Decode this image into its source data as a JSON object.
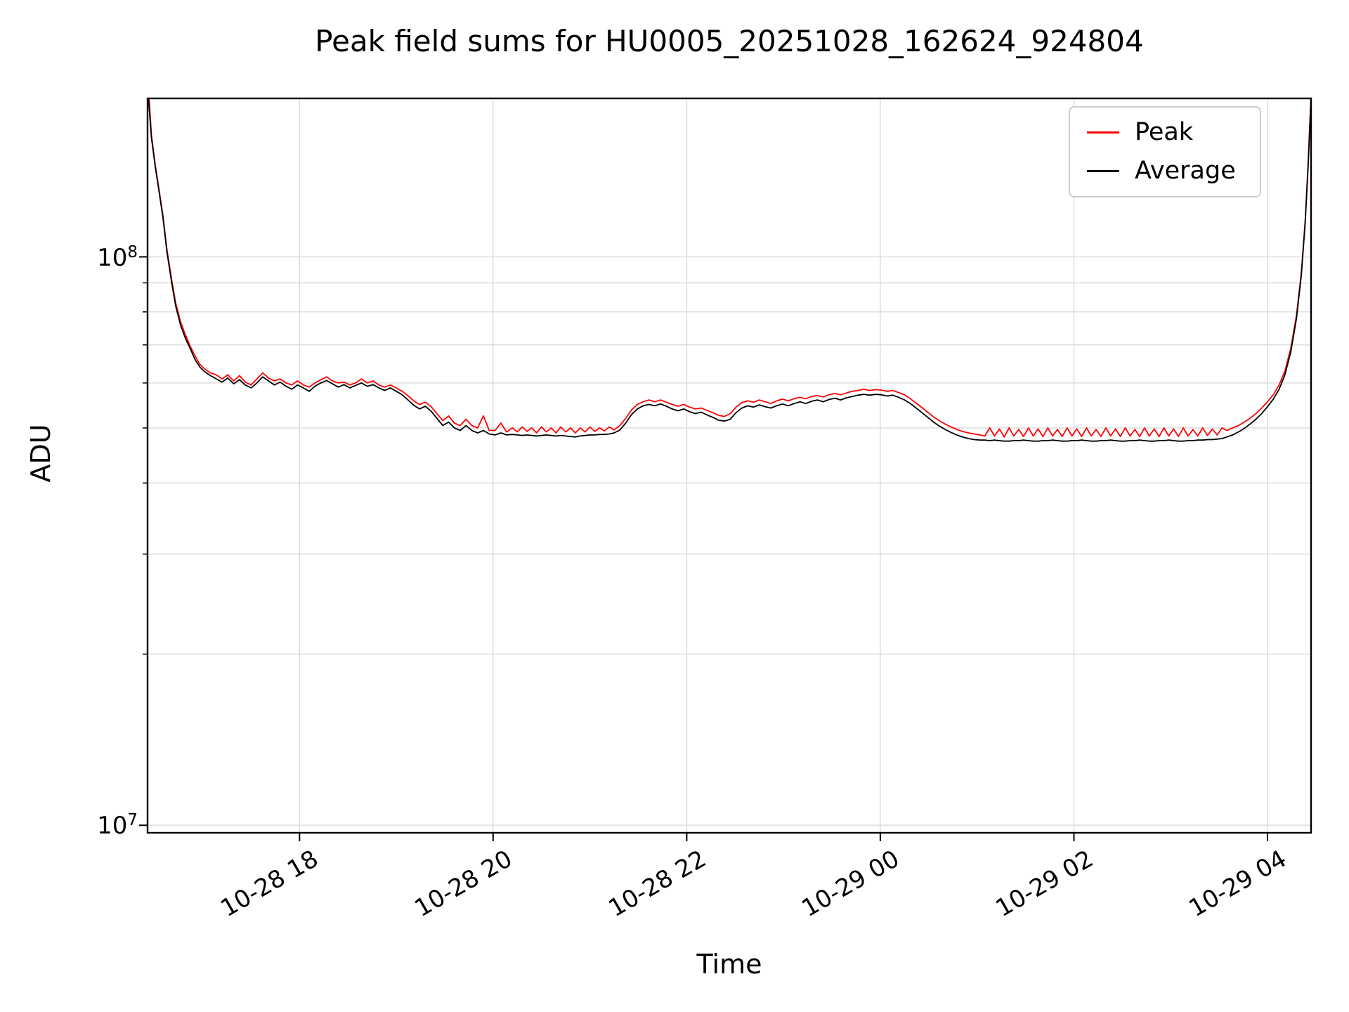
{
  "chart": {
    "title": "Peak field sums for HU0005_20251028_162624_924804",
    "xlabel": "Time",
    "ylabel": "ADU",
    "xlim": [
      16.43,
      28.45
    ],
    "ylim": [
      9700000.0,
      190000000.0
    ],
    "yscale": "log",
    "grid_color": "#dedede",
    "spine_color": "#000000",
    "background": "#ffffff",
    "x_ticks": [
      {
        "t": 18,
        "label": "10-28 18"
      },
      {
        "t": 20,
        "label": "10-28 20"
      },
      {
        "t": 22,
        "label": "10-28 22"
      },
      {
        "t": 24,
        "label": "10-29 00"
      },
      {
        "t": 26,
        "label": "10-29 02"
      },
      {
        "t": 28,
        "label": "10-29 04"
      }
    ],
    "y_ticks": [
      {
        "value": 10000000.0,
        "base": "10",
        "exp": "7"
      },
      {
        "value": 100000000.0,
        "base": "10",
        "exp": "8"
      }
    ],
    "y_minor_ticks": [
      20000000.0,
      30000000.0,
      40000000.0,
      50000000.0,
      60000000.0,
      70000000.0,
      80000000.0,
      90000000.0
    ],
    "legend": [
      {
        "label": "Peak",
        "color": "#ff0000"
      },
      {
        "label": "Average",
        "color": "#000000"
      }
    ]
  },
  "chart_data": {
    "type": "line",
    "title": "Peak field sums for HU0005_20251028_162624_924804",
    "xlabel": "Time",
    "ylabel": "ADU",
    "yscale": "log",
    "ylim": [
      9700000.0,
      190000000.0
    ],
    "x_unit": "hours since 2025-10-28 00:00 (18 = 10-28 18:00, 28 = 10-29 04:00)",
    "y_unit": "ADU",
    "legend_position": "upper right",
    "grid": true,
    "series": [
      {
        "name": "Peak",
        "color": "#ff0000"
      },
      {
        "name": "Average",
        "color": "#000000"
      }
    ],
    "columns": [
      "time_hours",
      "average",
      "peak"
    ],
    "points": [
      [
        16.43,
        200000000.0,
        210000000.0
      ],
      [
        16.47,
        162000000.0,
        164000000.0
      ],
      [
        16.51,
        144000000.0,
        145000000.0
      ],
      [
        16.55,
        130000000.0,
        131000000.0
      ],
      [
        16.59,
        117000000.0,
        118000000.0
      ],
      [
        16.63,
        102000000.0,
        103000000.0
      ],
      [
        16.68,
        90000000.0,
        91000000.0
      ],
      [
        16.72,
        82000000.0,
        83000000.0
      ],
      [
        16.77,
        76000000.0,
        77000000.0
      ],
      [
        16.82,
        72000000.0,
        73000000.0
      ],
      [
        16.87,
        69000000.0,
        69700000.0
      ],
      [
        16.92,
        66000000.0,
        67000000.0
      ],
      [
        16.97,
        64000000.0,
        64700000.0
      ],
      [
        17.02,
        62800000.0,
        63500000.0
      ],
      [
        17.08,
        61800000.0,
        62500000.0
      ],
      [
        17.14,
        61000000.0,
        62000000.0
      ],
      [
        17.2,
        60200000.0,
        61000000.0
      ],
      [
        17.26,
        61200000.0,
        62000000.0
      ],
      [
        17.32,
        59800000.0,
        60500000.0
      ],
      [
        17.38,
        60800000.0,
        61800000.0
      ],
      [
        17.44,
        59500000.0,
        60200000.0
      ],
      [
        17.5,
        58800000.0,
        59500000.0
      ],
      [
        17.56,
        60000000.0,
        61000000.0
      ],
      [
        17.62,
        61500000.0,
        62500000.0
      ],
      [
        17.68,
        60500000.0,
        61200000.0
      ],
      [
        17.74,
        59500000.0,
        60500000.0
      ],
      [
        17.8,
        60200000.0,
        61000000.0
      ],
      [
        17.86,
        59200000.0,
        60000000.0
      ],
      [
        17.92,
        58500000.0,
        59500000.0
      ],
      [
        17.98,
        59500000.0,
        60500000.0
      ],
      [
        18.04,
        58800000.0,
        59500000.0
      ],
      [
        18.1,
        58000000.0,
        59000000.0
      ],
      [
        18.16,
        59200000.0,
        60000000.0
      ],
      [
        18.22,
        60000000.0,
        60800000.0
      ],
      [
        18.28,
        60600000.0,
        61500000.0
      ],
      [
        18.34,
        59800000.0,
        60500000.0
      ],
      [
        18.4,
        59000000.0,
        60000000.0
      ],
      [
        18.46,
        59600000.0,
        60200000.0
      ],
      [
        18.52,
        58800000.0,
        59500000.0
      ],
      [
        18.58,
        59400000.0,
        60000000.0
      ],
      [
        18.64,
        60000000.0,
        61000000.0
      ],
      [
        18.7,
        59200000.0,
        60000000.0
      ],
      [
        18.76,
        59600000.0,
        60500000.0
      ],
      [
        18.82,
        58800000.0,
        59500000.0
      ],
      [
        18.88,
        58200000.0,
        59000000.0
      ],
      [
        18.94,
        58800000.0,
        59500000.0
      ],
      [
        19.0,
        58000000.0,
        58800000.0
      ],
      [
        19.06,
        57200000.0,
        58000000.0
      ],
      [
        19.12,
        56000000.0,
        57000000.0
      ],
      [
        19.18,
        54800000.0,
        55800000.0
      ],
      [
        19.24,
        54000000.0,
        55000000.0
      ],
      [
        19.3,
        54600000.0,
        55500000.0
      ],
      [
        19.36,
        53500000.0,
        54500000.0
      ],
      [
        19.42,
        52000000.0,
        53000000.0
      ],
      [
        19.48,
        50500000.0,
        51500000.0
      ],
      [
        19.54,
        51200000.0,
        52500000.0
      ],
      [
        19.6,
        50000000.0,
        51000000.0
      ],
      [
        19.66,
        49500000.0,
        50500000.0
      ],
      [
        19.72,
        50500000.0,
        51800000.0
      ],
      [
        19.78,
        49500000.0,
        50500000.0
      ],
      [
        19.84,
        49000000.0,
        50000000.0
      ],
      [
        19.9,
        49500000.0,
        52500000.0
      ],
      [
        19.96,
        48800000.0,
        49500000.0
      ],
      [
        20.02,
        48600000.0,
        49500000.0
      ],
      [
        20.08,
        49000000.0,
        51000000.0
      ],
      [
        20.14,
        48600000.0,
        49200000.0
      ],
      [
        20.2,
        48700000.0,
        50000000.0
      ],
      [
        20.25,
        48600000.0,
        49200000.0
      ],
      [
        20.3,
        48500000.0,
        50200000.0
      ],
      [
        20.35,
        48600000.0,
        49300000.0
      ],
      [
        20.4,
        48500000.0,
        50000000.0
      ],
      [
        20.45,
        48400000.0,
        49000000.0
      ],
      [
        20.5,
        48500000.0,
        50200000.0
      ],
      [
        20.55,
        48600000.0,
        49200000.0
      ],
      [
        20.6,
        48500000.0,
        50000000.0
      ],
      [
        20.65,
        48400000.0,
        49000000.0
      ],
      [
        20.7,
        48500000.0,
        50200000.0
      ],
      [
        20.75,
        48400000.0,
        49200000.0
      ],
      [
        20.8,
        48300000.0,
        50000000.0
      ],
      [
        20.85,
        48200000.0,
        49000000.0
      ],
      [
        20.9,
        48400000.0,
        50000000.0
      ],
      [
        20.95,
        48500000.0,
        49200000.0
      ],
      [
        21.0,
        48600000.0,
        50200000.0
      ],
      [
        21.05,
        48600000.0,
        49300000.0
      ],
      [
        21.1,
        48700000.0,
        50000000.0
      ],
      [
        21.15,
        48700000.0,
        49400000.0
      ],
      [
        21.2,
        48800000.0,
        50200000.0
      ],
      [
        21.25,
        49000000.0,
        49600000.0
      ],
      [
        21.31,
        49600000.0,
        50500000.0
      ],
      [
        21.37,
        51000000.0,
        52000000.0
      ],
      [
        21.43,
        52800000.0,
        53800000.0
      ],
      [
        21.49,
        54000000.0,
        55000000.0
      ],
      [
        21.55,
        54700000.0,
        55600000.0
      ],
      [
        21.61,
        55000000.0,
        56000000.0
      ],
      [
        21.67,
        54700000.0,
        55600000.0
      ],
      [
        21.73,
        55100000.0,
        56000000.0
      ],
      [
        21.79,
        54600000.0,
        55500000.0
      ],
      [
        21.85,
        54000000.0,
        55000000.0
      ],
      [
        21.91,
        53600000.0,
        54600000.0
      ],
      [
        21.97,
        54000000.0,
        55000000.0
      ],
      [
        22.03,
        53400000.0,
        54400000.0
      ],
      [
        22.09,
        53000000.0,
        54000000.0
      ],
      [
        22.15,
        53300000.0,
        54200000.0
      ],
      [
        22.21,
        52700000.0,
        53700000.0
      ],
      [
        22.27,
        52200000.0,
        53200000.0
      ],
      [
        22.33,
        51600000.0,
        52600000.0
      ],
      [
        22.39,
        51400000.0,
        52400000.0
      ],
      [
        22.45,
        51800000.0,
        53000000.0
      ],
      [
        22.51,
        53200000.0,
        54400000.0
      ],
      [
        22.57,
        54200000.0,
        55400000.0
      ],
      [
        22.63,
        54700000.0,
        55800000.0
      ],
      [
        22.69,
        54400000.0,
        55500000.0
      ],
      [
        22.75,
        54900000.0,
        56000000.0
      ],
      [
        22.81,
        54500000.0,
        55600000.0
      ],
      [
        22.87,
        54200000.0,
        55200000.0
      ],
      [
        22.93,
        54700000.0,
        55800000.0
      ],
      [
        22.99,
        55100000.0,
        56200000.0
      ],
      [
        23.05,
        54700000.0,
        55800000.0
      ],
      [
        23.11,
        55200000.0,
        56300000.0
      ],
      [
        23.17,
        55600000.0,
        56600000.0
      ],
      [
        23.23,
        55200000.0,
        56300000.0
      ],
      [
        23.29,
        55700000.0,
        56800000.0
      ],
      [
        23.35,
        56000000.0,
        57000000.0
      ],
      [
        23.41,
        55600000.0,
        56700000.0
      ],
      [
        23.47,
        56100000.0,
        57200000.0
      ],
      [
        23.53,
        56400000.0,
        57500000.0
      ],
      [
        23.59,
        56000000.0,
        57200000.0
      ],
      [
        23.65,
        56500000.0,
        57600000.0
      ],
      [
        23.71,
        56800000.0,
        58000000.0
      ],
      [
        23.77,
        57100000.0,
        58200000.0
      ],
      [
        23.83,
        57300000.0,
        58500000.0
      ],
      [
        23.89,
        57100000.0,
        58200000.0
      ],
      [
        23.95,
        57300000.0,
        58400000.0
      ],
      [
        24.01,
        57200000.0,
        58300000.0
      ],
      [
        24.07,
        56900000.0,
        58000000.0
      ],
      [
        24.13,
        57100000.0,
        58200000.0
      ],
      [
        24.19,
        56600000.0,
        57700000.0
      ],
      [
        24.25,
        56000000.0,
        57200000.0
      ],
      [
        24.31,
        55200000.0,
        56300000.0
      ],
      [
        24.37,
        54200000.0,
        55300000.0
      ],
      [
        24.43,
        53200000.0,
        54300000.0
      ],
      [
        24.49,
        52200000.0,
        53300000.0
      ],
      [
        24.55,
        51200000.0,
        52300000.0
      ],
      [
        24.61,
        50400000.0,
        51500000.0
      ],
      [
        24.67,
        49700000.0,
        50800000.0
      ],
      [
        24.73,
        49100000.0,
        50200000.0
      ],
      [
        24.79,
        48600000.0,
        49700000.0
      ],
      [
        24.85,
        48200000.0,
        49300000.0
      ],
      [
        24.91,
        47900000.0,
        49000000.0
      ],
      [
        24.97,
        47700000.0,
        48800000.0
      ],
      [
        25.03,
        47600000.0,
        48600000.0
      ],
      [
        25.08,
        47600000.0,
        48400000.0
      ],
      [
        25.13,
        47500000.0,
        50000000.0
      ],
      [
        25.18,
        47600000.0,
        48400000.0
      ],
      [
        25.23,
        47500000.0,
        49800000.0
      ],
      [
        25.28,
        47400000.0,
        48200000.0
      ],
      [
        25.33,
        47400000.0,
        50000000.0
      ],
      [
        25.38,
        47500000.0,
        48400000.0
      ],
      [
        25.43,
        47500000.0,
        49700000.0
      ],
      [
        25.48,
        47600000.0,
        48300000.0
      ],
      [
        25.53,
        47500000.0,
        50000000.0
      ],
      [
        25.58,
        47400000.0,
        48400000.0
      ],
      [
        25.63,
        47400000.0,
        49800000.0
      ],
      [
        25.68,
        47500000.0,
        48300000.0
      ],
      [
        25.73,
        47500000.0,
        50000000.0
      ],
      [
        25.78,
        47600000.0,
        48400000.0
      ],
      [
        25.83,
        47500000.0,
        49700000.0
      ],
      [
        25.88,
        47400000.0,
        48300000.0
      ],
      [
        25.93,
        47400000.0,
        50000000.0
      ],
      [
        25.98,
        47500000.0,
        48400000.0
      ],
      [
        26.03,
        47500000.0,
        49800000.0
      ],
      [
        26.08,
        47600000.0,
        48300000.0
      ],
      [
        26.13,
        47500000.0,
        50000000.0
      ],
      [
        26.18,
        47400000.0,
        48400000.0
      ],
      [
        26.23,
        47400000.0,
        49700000.0
      ],
      [
        26.28,
        47500000.0,
        48300000.0
      ],
      [
        26.33,
        47500000.0,
        50000000.0
      ],
      [
        26.38,
        47600000.0,
        48400000.0
      ],
      [
        26.43,
        47500000.0,
        49800000.0
      ],
      [
        26.48,
        47400000.0,
        48300000.0
      ],
      [
        26.53,
        47400000.0,
        50000000.0
      ],
      [
        26.58,
        47500000.0,
        48400000.0
      ],
      [
        26.63,
        47500000.0,
        49700000.0
      ],
      [
        26.68,
        47600000.0,
        48300000.0
      ],
      [
        26.73,
        47500000.0,
        50000000.0
      ],
      [
        26.78,
        47400000.0,
        48400000.0
      ],
      [
        26.83,
        47400000.0,
        49800000.0
      ],
      [
        26.88,
        47500000.0,
        48300000.0
      ],
      [
        26.93,
        47500000.0,
        50000000.0
      ],
      [
        26.98,
        47600000.0,
        48400000.0
      ],
      [
        27.03,
        47500000.0,
        49800000.0
      ],
      [
        27.08,
        47400000.0,
        48300000.0
      ],
      [
        27.13,
        47400000.0,
        50000000.0
      ],
      [
        27.18,
        47500000.0,
        48400000.0
      ],
      [
        27.23,
        47500000.0,
        49700000.0
      ],
      [
        27.28,
        47600000.0,
        48400000.0
      ],
      [
        27.33,
        47600000.0,
        50000000.0
      ],
      [
        27.38,
        47700000.0,
        48500000.0
      ],
      [
        27.43,
        47700000.0,
        49800000.0
      ],
      [
        27.48,
        47800000.0,
        48600000.0
      ],
      [
        27.53,
        47900000.0,
        50000000.0
      ],
      [
        27.58,
        48200000.0,
        49500000.0
      ],
      [
        27.64,
        48600000.0,
        50000000.0
      ],
      [
        27.7,
        49200000.0,
        50500000.0
      ],
      [
        27.76,
        49900000.0,
        51200000.0
      ],
      [
        27.82,
        50800000.0,
        52000000.0
      ],
      [
        27.88,
        51800000.0,
        53000000.0
      ],
      [
        27.94,
        53000000.0,
        54200000.0
      ],
      [
        28.0,
        54500000.0,
        55600000.0
      ],
      [
        28.06,
        56200000.0,
        57200000.0
      ],
      [
        28.12,
        58500000.0,
        59500000.0
      ],
      [
        28.18,
        62000000.0,
        63000000.0
      ],
      [
        28.24,
        68000000.0,
        69000000.0
      ],
      [
        28.3,
        78000000.0,
        79000000.0
      ],
      [
        28.35,
        93000000.0,
        94000000.0
      ],
      [
        28.39,
        115000000.0,
        116000000.0
      ],
      [
        28.42,
        145000000.0,
        147000000.0
      ],
      [
        28.45,
        190000000.0,
        193000000.0
      ]
    ]
  }
}
